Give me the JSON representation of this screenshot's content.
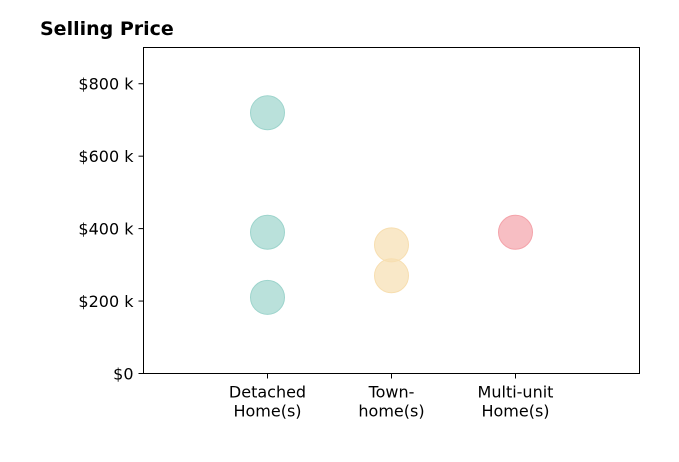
{
  "chart_data": {
    "type": "scatter",
    "title": "Selling Price",
    "xlabel": "",
    "ylabel": "",
    "categories": [
      [
        "Detached",
        "Home(s)"
      ],
      [
        "Town-",
        "home(s)"
      ],
      [
        "Multi-unit",
        "Home(s)"
      ]
    ],
    "xlim": [
      0,
      4
    ],
    "ylim": [
      0,
      900000
    ],
    "yticks": [
      {
        "value": 0,
        "label": "$0"
      },
      {
        "value": 200000,
        "label": "$200 k"
      },
      {
        "value": 400000,
        "label": "$400 k"
      },
      {
        "value": 600000,
        "label": "$600 k"
      },
      {
        "value": 800000,
        "label": "$800 k"
      }
    ],
    "grid": false,
    "series": [
      {
        "category_index": 0,
        "color": "#9dd4cc",
        "values": [
          720000,
          390000,
          210000
        ]
      },
      {
        "category_index": 1,
        "color": "#f7deb0",
        "values": [
          355000,
          270000
        ]
      },
      {
        "category_index": 2,
        "color": "#f4a3aa",
        "values": [
          390000
        ]
      }
    ]
  }
}
